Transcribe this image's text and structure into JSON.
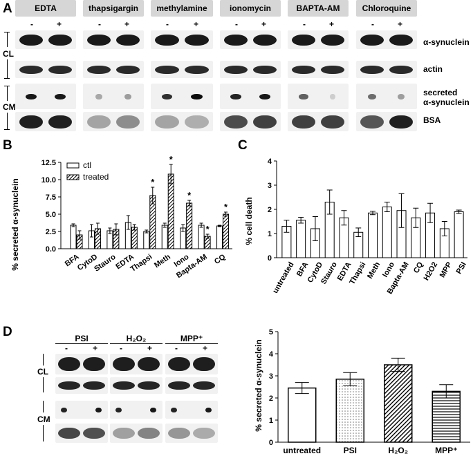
{
  "panel_a": {
    "letter": "A",
    "headers": [
      "EDTA",
      "thapsigargin",
      "methylamine",
      "ionomycin",
      "BAPTA-AM",
      "Chloroquine"
    ],
    "minus": "-",
    "plus": "+",
    "row_labels": {
      "synuclein": "α-synuclein",
      "actin": "actin",
      "secreted_line1": "secreted",
      "secreted_line2": "α-synuclein",
      "bsa": "BSA"
    },
    "cl": "CL",
    "cm": "CM"
  },
  "panel_d_blots": {
    "letter": "D",
    "headers": [
      "PSI",
      "H₂O₂",
      "MPP⁺"
    ],
    "minus": "-",
    "plus": "+",
    "cl": "CL",
    "cm": "CM"
  },
  "chart_data": [
    {
      "type": "bar",
      "panel": "B",
      "ylabel": "% secreted α-synuclein",
      "categories": [
        "BFA",
        "CytoD",
        "Stauro",
        "EDTA",
        "Thapsi",
        "Meth",
        "Iono",
        "Bapta-AM",
        "CQ"
      ],
      "series": [
        {
          "name": "ctl",
          "values": [
            3.4,
            2.6,
            2.6,
            3.8,
            2.5,
            3.4,
            3.0,
            3.4,
            3.3
          ],
          "errors": [
            0.2,
            0.9,
            0.4,
            1.0,
            0.2,
            0.3,
            0.5,
            0.3,
            0.1
          ]
        },
        {
          "name": "treated",
          "values": [
            2.0,
            2.9,
            2.8,
            3.1,
            7.7,
            10.8,
            6.6,
            1.8,
            5.0
          ],
          "errors": [
            0.6,
            0.8,
            0.8,
            0.4,
            1.2,
            1.4,
            0.4,
            0.3,
            0.3
          ]
        }
      ],
      "significant": [
        false,
        false,
        false,
        false,
        true,
        true,
        true,
        true,
        true
      ],
      "significance_mark": "*",
      "ylim": [
        0,
        12.5
      ],
      "yticks": [
        "0.0",
        "2.5",
        "5.0",
        "7.5",
        "10.0",
        "12.5"
      ]
    },
    {
      "type": "bar",
      "panel": "C",
      "ylabel": "% cell death",
      "categories": [
        "untreated",
        "BFA",
        "CytoD",
        "Stauro",
        "EDTA",
        "Thapsi",
        "Meth",
        "Iono",
        "Bapta-AM",
        "CQ",
        "H2O2",
        "MPP",
        "PSI"
      ],
      "values": [
        1.3,
        1.55,
        1.2,
        2.3,
        1.65,
        1.05,
        1.85,
        2.1,
        1.95,
        1.65,
        1.85,
        1.2,
        1.9
      ],
      "errors": [
        0.25,
        0.12,
        0.5,
        0.5,
        0.3,
        0.18,
        0.07,
        0.2,
        0.7,
        0.4,
        0.4,
        0.3,
        0.07
      ],
      "ylim": [
        0,
        4
      ],
      "yticks": [
        "0",
        "1",
        "2",
        "3",
        "4"
      ]
    },
    {
      "type": "bar",
      "panel": "D",
      "ylabel": "% secreted α-synuclein",
      "categories": [
        "untreated",
        "PSI",
        "H₂O₂",
        "MPP⁺"
      ],
      "values": [
        2.45,
        2.85,
        3.5,
        2.3
      ],
      "errors": [
        0.25,
        0.3,
        0.3,
        0.3
      ],
      "fills": [
        "white",
        "dots",
        "diagonal",
        "horizontal"
      ],
      "ylim": [
        0,
        5
      ],
      "yticks": [
        "0",
        "1",
        "2",
        "3",
        "4",
        "5"
      ]
    }
  ]
}
